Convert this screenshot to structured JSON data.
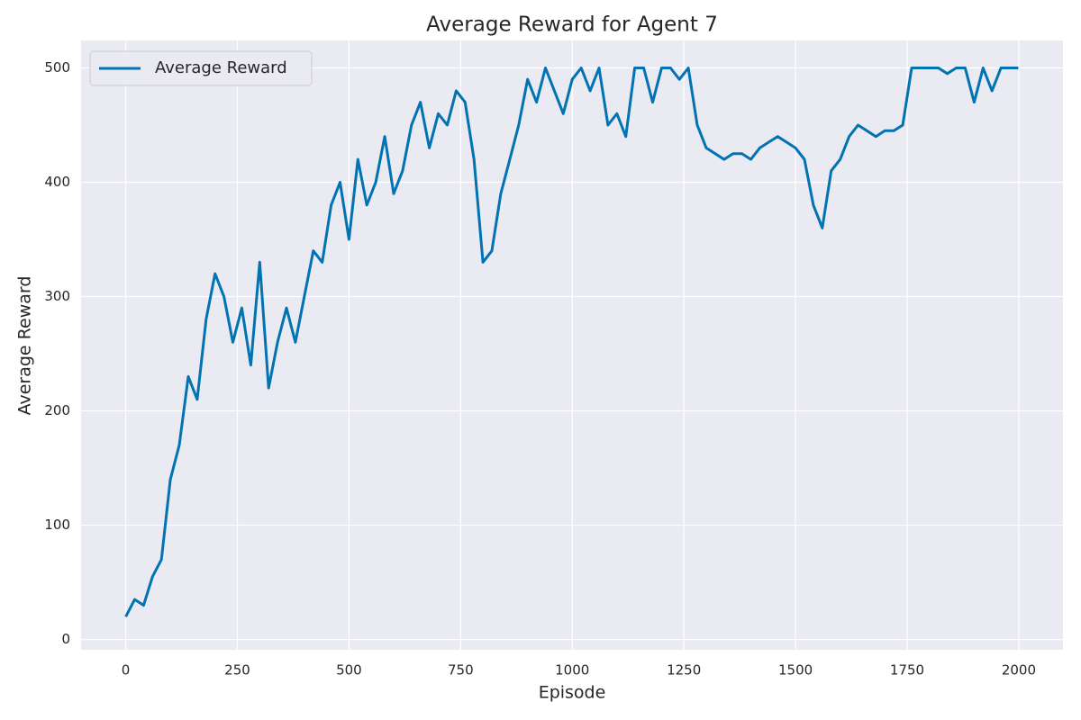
{
  "chart_data": {
    "type": "line",
    "title": "Average Reward for Agent 7",
    "x_label": "Episode",
    "y_label": "Average Reward",
    "x": [
      0,
      20,
      40,
      60,
      80,
      100,
      120,
      140,
      160,
      180,
      200,
      220,
      240,
      260,
      280,
      300,
      320,
      340,
      360,
      380,
      400,
      420,
      440,
      460,
      480,
      500,
      520,
      540,
      560,
      580,
      600,
      620,
      640,
      660,
      680,
      700,
      720,
      740,
      760,
      780,
      800,
      820,
      840,
      860,
      880,
      900,
      920,
      940,
      960,
      980,
      1000,
      1020,
      1040,
      1060,
      1080,
      1100,
      1120,
      1140,
      1160,
      1180,
      1200,
      1220,
      1240,
      1260,
      1280,
      1300,
      1320,
      1340,
      1360,
      1380,
      1400,
      1420,
      1440,
      1460,
      1480,
      1500,
      1520,
      1540,
      1560,
      1580,
      1600,
      1620,
      1640,
      1660,
      1680,
      1700,
      1720,
      1740,
      1760,
      1780,
      1800,
      1820,
      1840,
      1860,
      1880,
      1900,
      1920,
      1940,
      1960,
      1980,
      1999
    ],
    "series": [
      {
        "name": "Average Reward",
        "color": "#0173b2",
        "values": [
          20,
          35,
          30,
          55,
          70,
          140,
          170,
          230,
          210,
          280,
          320,
          300,
          260,
          290,
          240,
          330,
          220,
          260,
          290,
          260,
          300,
          340,
          330,
          380,
          400,
          350,
          420,
          380,
          400,
          440,
          390,
          410,
          450,
          470,
          430,
          460,
          450,
          480,
          470,
          420,
          330,
          340,
          390,
          420,
          450,
          490,
          470,
          500,
          480,
          460,
          490,
          500,
          480,
          500,
          450,
          460,
          440,
          500,
          500,
          470,
          500,
          500,
          490,
          500,
          450,
          430,
          425,
          420,
          425,
          425,
          420,
          430,
          435,
          440,
          435,
          430,
          420,
          380,
          360,
          410,
          420,
          440,
          450,
          445,
          440,
          445,
          445,
          450,
          500,
          500,
          500,
          500,
          495,
          500,
          500,
          470,
          500,
          480,
          500,
          500,
          500
        ]
      }
    ],
    "xlim": [
      -100,
      2099
    ],
    "ylim": [
      -9,
      524
    ],
    "xticks": [
      0,
      250,
      500,
      750,
      1000,
      1250,
      1500,
      1750,
      2000
    ],
    "yticks": [
      0,
      100,
      200,
      300,
      400,
      500
    ],
    "grid": true,
    "legend": "upper left"
  }
}
